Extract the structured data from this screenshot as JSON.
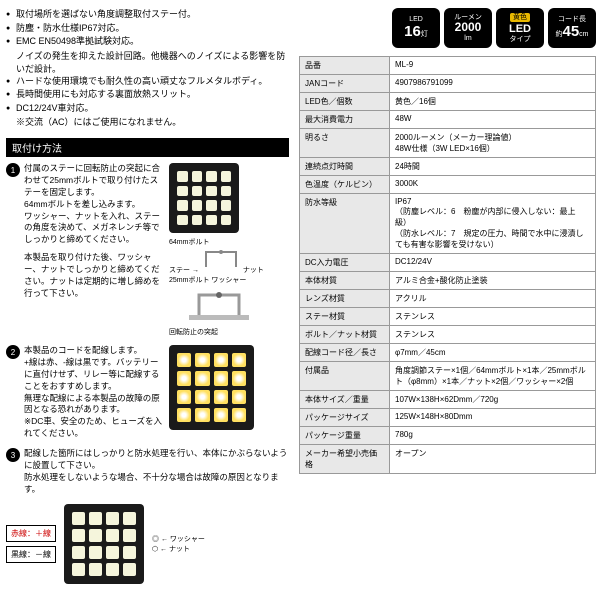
{
  "bullets": [
    "取付場所を選ばない角度調整取付ステー付。",
    "防塵・防水仕様IP67対応。",
    "EMC EN50498準拠試験対応。",
    "ノイズの発生を抑えた設計回路。他機器へのノイズによる影響を防いだ設計。",
    "ハードな使用環境でも耐久性の高い頑丈なフルメタルボディ。",
    "長時間使用にも対応する裏面放熱スリット。",
    "DC12/24V車対応。",
    "※交流（AC）にはご使用になれません。"
  ],
  "install_header": "取付け方法",
  "install": [
    {
      "num": "1",
      "text": "付属のステーに回転防止の突起に合わせて25mmボルトで取り付けたステーを固定します。\n64mmボルトを差し込みます。\nワッシャー、ナットを入れ、ステーの角度を決めて、メガネレンチ等でしっかりと締めてください。",
      "note": "本製品を取り付けた後、ワッシャー、ナットでしっかりと締めてください。ナットは定期的に増し締めを行って下さい。",
      "labels": {
        "bolt64": "64mmボルト",
        "stay": "ステー",
        "bolt25": "25mmボルト",
        "nut": "ナット",
        "washer": "ワッシャー",
        "rotation": "回転防止の突起"
      }
    },
    {
      "num": "2",
      "text": "本製品のコードを配線します。\n+線は赤、-線は黒です。バッテリーに直付けせず、リレー等に配線することをおすすめします。\n無理な配線による本製品の故障の原因となる恐れがあります。\n※DC車、安全のため、ヒューズを入れてください。"
    },
    {
      "num": "3",
      "text": "配線した箇所にはしっかりと防水処理を行い、本体にかぶらないように設置して下さい。\n防水処理をしないような場合、不十分な場合は故障の原因となります。",
      "wire_red": "赤線：＋線",
      "wire_black": "黒線：－線",
      "washer_label": "ワッシャー",
      "nut_label": "ナット"
    }
  ],
  "badges": [
    {
      "top": "LED",
      "big": "16",
      "sub": "灯",
      "bg": "#000000",
      "fg": "#ffffff"
    },
    {
      "top": "ルーメン",
      "big": "2000",
      "sub": "lm",
      "bg": "#000000",
      "fg": "#ffffff"
    },
    {
      "top": "黄色",
      "big": "LED",
      "sub": "タイプ",
      "bg": "#000000",
      "label_bg": "#e8b800"
    },
    {
      "top": "コード長",
      "pre": "約",
      "big": "45",
      "sub": "cm",
      "bg": "#000000",
      "fg": "#ffffff"
    }
  ],
  "spec_rows": [
    {
      "k": "品番",
      "v": "ML-9"
    },
    {
      "k": "JANコード",
      "v": "4907986791099"
    },
    {
      "k": "LED色／個数",
      "v": "黄色／16個"
    },
    {
      "k": "最大消費電力",
      "v": "48W"
    },
    {
      "k": "明るさ",
      "v": "2000ルーメン（メーカー理論値）\n48W仕様（3W LED×16個）"
    },
    {
      "k": "連続点灯時間",
      "v": "24時間"
    },
    {
      "k": "色温度（ケルビン）",
      "v": "3000K"
    },
    {
      "k": "防水等級",
      "v": "IP67\n（防塵レベル：6　粉塵が内部に侵入しない：最上級）\n（防水レベル：7　規定の圧力、時間で水中に浸漬しても有害な影響を受けない）"
    },
    {
      "k": "DC入力電圧",
      "v": "DC12/24V"
    },
    {
      "k": "本体材質",
      "v": "アルミ合金+酸化防止塗装"
    },
    {
      "k": "レンズ材質",
      "v": "アクリル"
    },
    {
      "k": "ステー材質",
      "v": "ステンレス"
    },
    {
      "k": "ボルト／ナット材質",
      "v": "ステンレス"
    },
    {
      "k": "配線コード径／長さ",
      "v": "φ7mm／45cm"
    },
    {
      "k": "付属品",
      "v": "角度調節ステー×1個／64mmボルト×1本／25mmボルト（φ8mm）×1本／ナット×2個／ワッシャー×2個"
    },
    {
      "k": "本体サイズ／重量",
      "v": "107W×138H×62Dmm／720g"
    },
    {
      "k": "パッケージサイズ",
      "v": "125W×148H×80Dmm"
    },
    {
      "k": "パッケージ重量",
      "v": "780g"
    },
    {
      "k": "メーカー希望小売価格",
      "v": "オープン"
    }
  ],
  "colors": {
    "table_header_bg": "#e8e8e8",
    "table_border": "#999999",
    "badge_bg": "#000000",
    "yellow": "#e8b800",
    "red": "#cc0000"
  },
  "typography": {
    "body_fontsize": 9,
    "table_fontsize": 8,
    "badge_big_fontsize": 15
  }
}
